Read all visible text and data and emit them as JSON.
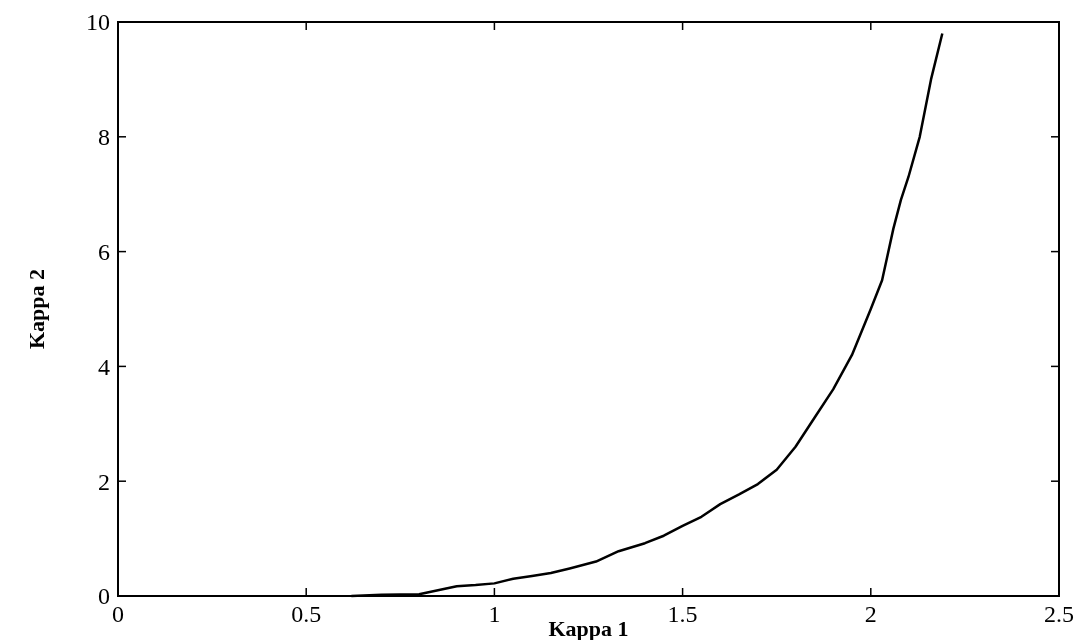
{
  "chart_data": {
    "type": "line",
    "xlabel": "Kappa 1",
    "ylabel": "Kappa 2",
    "x": [
      0.62,
      0.7,
      0.8,
      0.85,
      0.9,
      0.95,
      1.0,
      1.05,
      1.1,
      1.15,
      1.2,
      1.27,
      1.33,
      1.4,
      1.45,
      1.5,
      1.55,
      1.6,
      1.65,
      1.7,
      1.75,
      1.8,
      1.85,
      1.9,
      1.95,
      2.0,
      2.03,
      2.06,
      2.08,
      2.1,
      2.13,
      2.16,
      2.19
    ],
    "series": [
      {
        "color": "#000000",
        "values": [
          0,
          0.02,
          0.03,
          0.1,
          0.17,
          0.19,
          0.22,
          0.3,
          0.35,
          0.4,
          0.48,
          0.6,
          0.78,
          0.92,
          1.05,
          1.22,
          1.38,
          1.6,
          1.77,
          1.95,
          2.2,
          2.6,
          3.1,
          3.6,
          4.2,
          5.0,
          5.5,
          6.4,
          6.9,
          7.3,
          8.0,
          9.0,
          9.8
        ]
      }
    ],
    "xlim": [
      0,
      2.5
    ],
    "ylim": [
      0,
      10
    ],
    "xticks": [
      0,
      0.5,
      1,
      1.5,
      2,
      2.5
    ],
    "yticks": [
      0,
      2,
      4,
      6,
      8,
      10
    ],
    "grid": false,
    "marker": "none",
    "line_style": "solid"
  }
}
